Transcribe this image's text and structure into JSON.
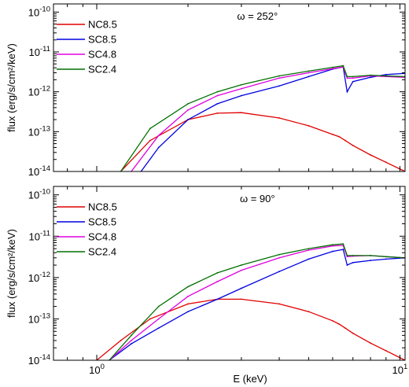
{
  "chart_data": [
    {
      "type": "line",
      "panel": "top",
      "annotation": "ω = 252°",
      "xlabel": "",
      "ylabel": "flux (erg/s/cm²/keV)",
      "xscale": "log",
      "yscale": "log",
      "xlim": [
        0.72,
        10.4
      ],
      "ylim": [
        1e-14,
        1.6e-10
      ],
      "x_ticks": [],
      "y_ticks": [
        {
          "value": 1e-10,
          "label": "10^-10"
        },
        {
          "value": 1e-11,
          "label": "10^-11"
        },
        {
          "value": 1e-12,
          "label": "10^-12"
        },
        {
          "value": 1e-13,
          "label": "10^-13"
        },
        {
          "value": 1e-14,
          "label": "10^-14"
        }
      ],
      "legend": "top-left",
      "series": [
        {
          "name": "NC8.5",
          "color": "#e00000",
          "x": [
            1.2,
            1.5,
            2.0,
            2.5,
            3.0,
            4.0,
            5.0,
            6.0,
            6.3,
            6.6,
            7.0,
            8.0,
            9.0,
            10.4
          ],
          "y": [
            1e-14,
            6e-14,
            2e-13,
            2.9e-13,
            3e-13,
            2.2e-13,
            1.4e-13,
            8.5e-14,
            7.5e-14,
            6e-14,
            4.5e-14,
            2.6e-14,
            1.7e-14,
            1e-14
          ]
        },
        {
          "name": "SC8.5",
          "color": "#0000e0",
          "x": [
            1.4,
            1.6,
            2.0,
            2.5,
            3.0,
            4.0,
            5.0,
            6.0,
            6.5,
            6.7,
            7.0,
            8.0,
            9.0,
            10.4
          ],
          "y": [
            1e-14,
            4e-14,
            2e-13,
            5e-13,
            8e-13,
            1.4e-12,
            2.4e-12,
            3.7e-12,
            4.2e-12,
            1e-12,
            1.8e-12,
            2.3e-12,
            2.7e-12,
            2.9e-12
          ]
        },
        {
          "name": "SC4.8",
          "color": "#e000e0",
          "x": [
            1.3,
            1.6,
            2.0,
            2.5,
            3.0,
            4.0,
            5.0,
            6.0,
            6.5,
            6.7,
            7.0,
            8.0,
            9.0,
            10.4
          ],
          "y": [
            1e-14,
            8e-14,
            3.5e-13,
            8e-13,
            1.2e-12,
            2.2e-12,
            3e-12,
            3.8e-12,
            4.2e-12,
            2.2e-12,
            2.2e-12,
            2.5e-12,
            2.4e-12,
            2.3e-12
          ]
        },
        {
          "name": "SC2.4",
          "color": "#007000",
          "x": [
            1.2,
            1.5,
            2.0,
            2.5,
            3.0,
            4.0,
            5.0,
            6.0,
            6.5,
            6.7,
            7.0,
            8.0,
            9.0,
            10.4
          ],
          "y": [
            1e-14,
            1.2e-13,
            5e-13,
            1e-12,
            1.5e-12,
            2.5e-12,
            3.3e-12,
            4.1e-12,
            4.5e-12,
            2.4e-12,
            2.4e-12,
            2.6e-12,
            2.5e-12,
            2.4e-12
          ]
        }
      ]
    },
    {
      "type": "line",
      "panel": "bottom",
      "annotation": "ω = 90°",
      "xlabel": "E (keV)",
      "ylabel": "flux (erg/s/cm²/keV)",
      "xscale": "log",
      "yscale": "log",
      "xlim": [
        0.72,
        10.4
      ],
      "ylim": [
        1e-14,
        1.6e-10
      ],
      "x_ticks": [
        {
          "value": 1,
          "label": "10^0"
        },
        {
          "value": 10,
          "label": "10^1"
        }
      ],
      "y_ticks": [
        {
          "value": 1e-10,
          "label": "10^-10"
        },
        {
          "value": 1e-11,
          "label": "10^-11"
        },
        {
          "value": 1e-12,
          "label": "10^-12"
        },
        {
          "value": 1e-13,
          "label": "10^-13"
        },
        {
          "value": 1e-14,
          "label": "10^-14"
        }
      ],
      "legend": "top-left",
      "series": [
        {
          "name": "NC8.5",
          "color": "#e00000",
          "x": [
            1.0,
            1.2,
            1.5,
            2.0,
            2.5,
            3.0,
            4.0,
            5.0,
            6.0,
            6.3,
            6.6,
            7.0,
            8.0,
            9.0,
            10.4
          ],
          "y": [
            1e-14,
            3e-14,
            1e-13,
            2.3e-13,
            3e-13,
            3e-13,
            2.3e-13,
            1.5e-13,
            9e-14,
            7.5e-14,
            6e-14,
            4.5e-14,
            2.6e-14,
            1.7e-14,
            1e-14
          ]
        },
        {
          "name": "SC8.5",
          "color": "#0000e0",
          "x": [
            1.1,
            1.3,
            1.6,
            2.0,
            2.5,
            3.0,
            4.0,
            5.0,
            6.0,
            6.5,
            6.7,
            7.0,
            8.0,
            9.0,
            10.4
          ],
          "y": [
            1e-14,
            2.5e-14,
            6e-14,
            1.5e-13,
            3e-13,
            5.5e-13,
            1.4e-12,
            2.8e-12,
            4.3e-12,
            4.8e-12,
            2e-12,
            2.3e-12,
            2.6e-12,
            2.8e-12,
            3e-12
          ]
        },
        {
          "name": "SC4.8",
          "color": "#e000e0",
          "x": [
            1.1,
            1.3,
            1.6,
            2.0,
            2.5,
            3.0,
            4.0,
            5.0,
            6.0,
            6.5,
            6.7,
            7.0,
            8.0,
            9.0,
            10.4
          ],
          "y": [
            1e-14,
            3e-14,
            1e-13,
            3.5e-13,
            8e-13,
            1.5e-12,
            3e-12,
            4.6e-12,
            5.8e-12,
            6e-12,
            3.2e-12,
            3.3e-12,
            3.4e-12,
            3.2e-12,
            3e-12
          ]
        },
        {
          "name": "SC2.4",
          "color": "#007000",
          "x": [
            1.1,
            1.3,
            1.6,
            2.0,
            2.5,
            3.0,
            4.0,
            5.0,
            6.0,
            6.5,
            6.7,
            7.0,
            8.0,
            9.0,
            10.4
          ],
          "y": [
            1e-14,
            4e-14,
            2e-13,
            6e-13,
            1.3e-12,
            2e-12,
            3.6e-12,
            5e-12,
            6.2e-12,
            6.5e-12,
            3.4e-12,
            3.4e-12,
            3.4e-12,
            3.2e-12,
            3e-12
          ]
        }
      ]
    }
  ]
}
